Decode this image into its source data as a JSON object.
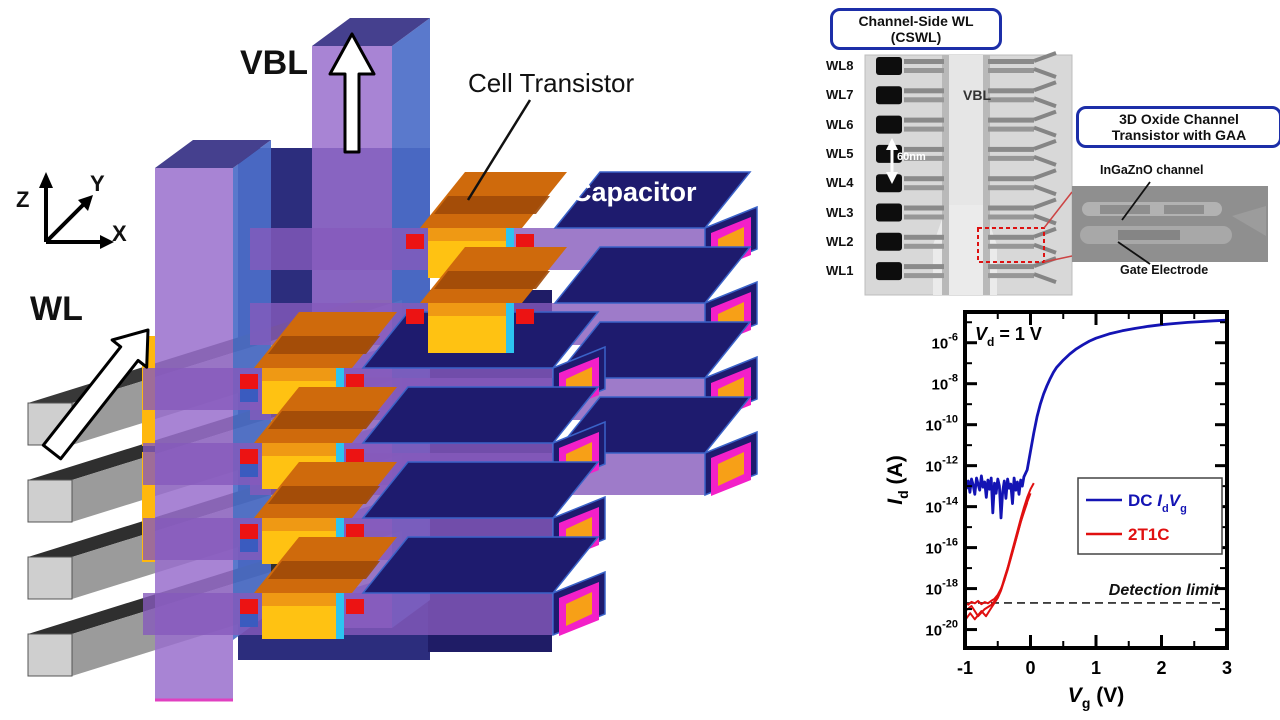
{
  "palette": {
    "capacitor_navy": "#1e1b6e",
    "capacitor_outline": "#3a62c8",
    "capacitor_magenta": "#f320c8",
    "capacitor_orange_core": "#f7a017",
    "beam_purple": "#8a5cc0",
    "pillar_purple": "#9a6ecd",
    "pillar_blue_side": "#4c6ec8",
    "pillar_top": "#45408e",
    "transistor_yellow": "#ffc212",
    "transistor_orange": "#cf6a0c",
    "contact_red": "#ec1313",
    "lining_cyan": "#2cc4f0",
    "wl_bar_gray": "#9b9b9b",
    "blue_curve": "#1414b4",
    "red_curve": "#e01010",
    "annotation_box_border": "#1c2ea8"
  },
  "figure": {
    "left_diagram": {
      "labels": {
        "vbl": "VBL",
        "cell_transistor": "Cell Transistor",
        "capacitor": "Capacitor",
        "wl": "WL",
        "axis_z": "Z",
        "axis_y": "Y",
        "axis_x": "X"
      }
    },
    "sem_panel": {
      "cswl_box": [
        "Channel-Side WL",
        "(CSWL)"
      ],
      "gaa_box": [
        "3D Oxide Channel",
        "Transistor with GAA"
      ],
      "wl_labels": [
        "WL8",
        "WL7",
        "WL6",
        "WL5",
        "WL4",
        "WL3",
        "WL2",
        "WL1"
      ],
      "vbl_label": "VBL",
      "scale_label": "60nm",
      "inset_top_label": "InGaZnO channel",
      "inset_bottom_label": "Gate Electrode"
    },
    "chart_data": {
      "type": "line",
      "xlim": [
        -1,
        3
      ],
      "ylog_lim": [
        -20.9,
        -4.5
      ],
      "x_major_ticks": [
        -1,
        0,
        1,
        2,
        3
      ],
      "x_minor_ticks": [
        -0.5,
        0.5,
        1.5,
        2.5
      ],
      "y_major_exponents": [
        -6,
        -8,
        -10,
        -12,
        -14,
        -16,
        -18,
        -20
      ],
      "y_minor_exponents": [
        -5,
        -7,
        -9,
        -11,
        -13,
        -15,
        -17,
        -19
      ],
      "xlabel_tokens": [
        {
          "t": "V",
          "i": true
        },
        {
          "t": "g",
          "sub": true
        },
        {
          "t": " (V)"
        }
      ],
      "ylabel_tokens": [
        {
          "t": "I",
          "i": true
        },
        {
          "t": "d",
          "sub": true
        },
        {
          "t": " (A)"
        }
      ],
      "annotation_tokens": [
        {
          "t": "V",
          "i": true
        },
        {
          "t": "d",
          "sub": true
        },
        {
          "t": " = 1 V"
        }
      ],
      "detection_limit": {
        "label": "Detection limit",
        "log_value": -18.7
      },
      "legend_position": "center-right",
      "series": [
        {
          "name_tokens": [
            {
              "t": "DC "
            },
            {
              "t": "I",
              "i": true
            },
            {
              "t": "d",
              "sub": true
            },
            {
              "t": "V",
              "i": true
            },
            {
              "t": "g",
              "sub": true
            }
          ],
          "color": "#1414b4",
          "width": 2.8,
          "traces": [
            [
              [
                -1.0,
                -12.55
              ],
              [
                -0.975,
                -13.1
              ],
              [
                -0.95,
                -12.75
              ],
              [
                -0.925,
                -13.3
              ],
              [
                -0.9,
                -12.65
              ],
              [
                -0.875,
                -12.95
              ],
              [
                -0.85,
                -13.4
              ],
              [
                -0.825,
                -12.6
              ],
              [
                -0.8,
                -12.9
              ],
              [
                -0.775,
                -13.2
              ],
              [
                -0.75,
                -12.5
              ],
              [
                -0.725,
                -13.05
              ],
              [
                -0.7,
                -12.8
              ],
              [
                -0.675,
                -13.55
              ],
              [
                -0.65,
                -12.7
              ],
              [
                -0.625,
                -13.15
              ],
              [
                -0.6,
                -12.6
              ],
              [
                -0.575,
                -14.3
              ],
              [
                -0.55,
                -12.85
              ],
              [
                -0.525,
                -13.35
              ],
              [
                -0.5,
                -12.65
              ],
              [
                -0.475,
                -13.0
              ],
              [
                -0.45,
                -14.55
              ],
              [
                -0.425,
                -13.25
              ],
              [
                -0.4,
                -12.75
              ],
              [
                -0.375,
                -13.6
              ],
              [
                -0.35,
                -12.65
              ],
              [
                -0.325,
                -13.1
              ],
              [
                -0.3,
                -12.9
              ],
              [
                -0.275,
                -13.85
              ],
              [
                -0.25,
                -12.6
              ],
              [
                -0.225,
                -13.2
              ],
              [
                -0.2,
                -12.8
              ],
              [
                -0.175,
                -13.4
              ],
              [
                -0.15,
                -12.7
              ],
              [
                -0.125,
                -13.0
              ],
              [
                -0.1,
                -12.55
              ],
              [
                -0.05,
                -12.2
              ],
              [
                0,
                -11.3
              ],
              [
                0.05,
                -10.4
              ],
              [
                0.1,
                -9.6
              ],
              [
                0.15,
                -9.0
              ],
              [
                0.2,
                -8.5
              ],
              [
                0.25,
                -8.1
              ],
              [
                0.3,
                -7.75
              ],
              [
                0.35,
                -7.45
              ],
              [
                0.4,
                -7.2
              ],
              [
                0.5,
                -6.85
              ],
              [
                0.6,
                -6.55
              ],
              [
                0.7,
                -6.3
              ],
              [
                0.8,
                -6.1
              ],
              [
                0.9,
                -5.92
              ],
              [
                1.0,
                -5.78
              ],
              [
                1.2,
                -5.57
              ],
              [
                1.4,
                -5.42
              ],
              [
                1.6,
                -5.3
              ],
              [
                1.8,
                -5.2
              ],
              [
                2.0,
                -5.12
              ],
              [
                2.2,
                -5.06
              ],
              [
                2.4,
                -5.01
              ],
              [
                2.6,
                -4.97
              ],
              [
                2.8,
                -4.93
              ],
              [
                3.0,
                -4.9
              ]
            ]
          ]
        },
        {
          "name_tokens": [
            {
              "t": "2T1C"
            }
          ],
          "color": "#e01010",
          "width": 2.0,
          "traces": [
            [
              [
                -1,
                -18.7
              ],
              [
                -0.95,
                -18.78
              ],
              [
                -0.9,
                -18.65
              ],
              [
                -0.85,
                -18.72
              ],
              [
                -0.8,
                -18.6
              ],
              [
                -0.75,
                -18.76
              ],
              [
                -0.7,
                -18.66
              ],
              [
                -0.65,
                -18.72
              ],
              [
                -0.6,
                -18.6
              ],
              [
                -0.55,
                -18.5
              ],
              [
                -0.5,
                -18.3
              ],
              [
                -0.45,
                -18.0
              ],
              [
                -0.4,
                -17.6
              ],
              [
                -0.35,
                -17.0
              ],
              [
                -0.3,
                -16.4
              ],
              [
                -0.25,
                -15.8
              ],
              [
                -0.2,
                -15.2
              ],
              [
                -0.15,
                -14.6
              ],
              [
                -0.1,
                -14.05
              ],
              [
                -0.05,
                -13.55
              ],
              [
                0,
                -13.15
              ],
              [
                0.05,
                -12.85
              ]
            ],
            [
              [
                -1,
                -19.1
              ],
              [
                -0.9,
                -18.85
              ],
              [
                -0.8,
                -19.35
              ],
              [
                -0.7,
                -19.0
              ],
              [
                -0.6,
                -18.8
              ],
              [
                -0.55,
                -18.62
              ],
              [
                -0.5,
                -18.38
              ],
              [
                -0.45,
                -18.05
              ],
              [
                -0.4,
                -17.5
              ],
              [
                -0.3,
                -16.5
              ],
              [
                -0.2,
                -15.35
              ],
              [
                -0.1,
                -14.2
              ],
              [
                0,
                -13.35
              ]
            ],
            [
              [
                -1,
                -19.55
              ],
              [
                -0.92,
                -19.2
              ],
              [
                -0.85,
                -19.5
              ],
              [
                -0.75,
                -19.1
              ],
              [
                -0.68,
                -19.35
              ],
              [
                -0.6,
                -18.95
              ],
              [
                -0.55,
                -18.7
              ],
              [
                -0.5,
                -18.45
              ],
              [
                -0.45,
                -18.1
              ],
              [
                -0.35,
                -17.1
              ],
              [
                -0.25,
                -15.95
              ],
              [
                -0.15,
                -14.75
              ],
              [
                -0.05,
                -13.8
              ]
            ]
          ]
        }
      ]
    }
  }
}
